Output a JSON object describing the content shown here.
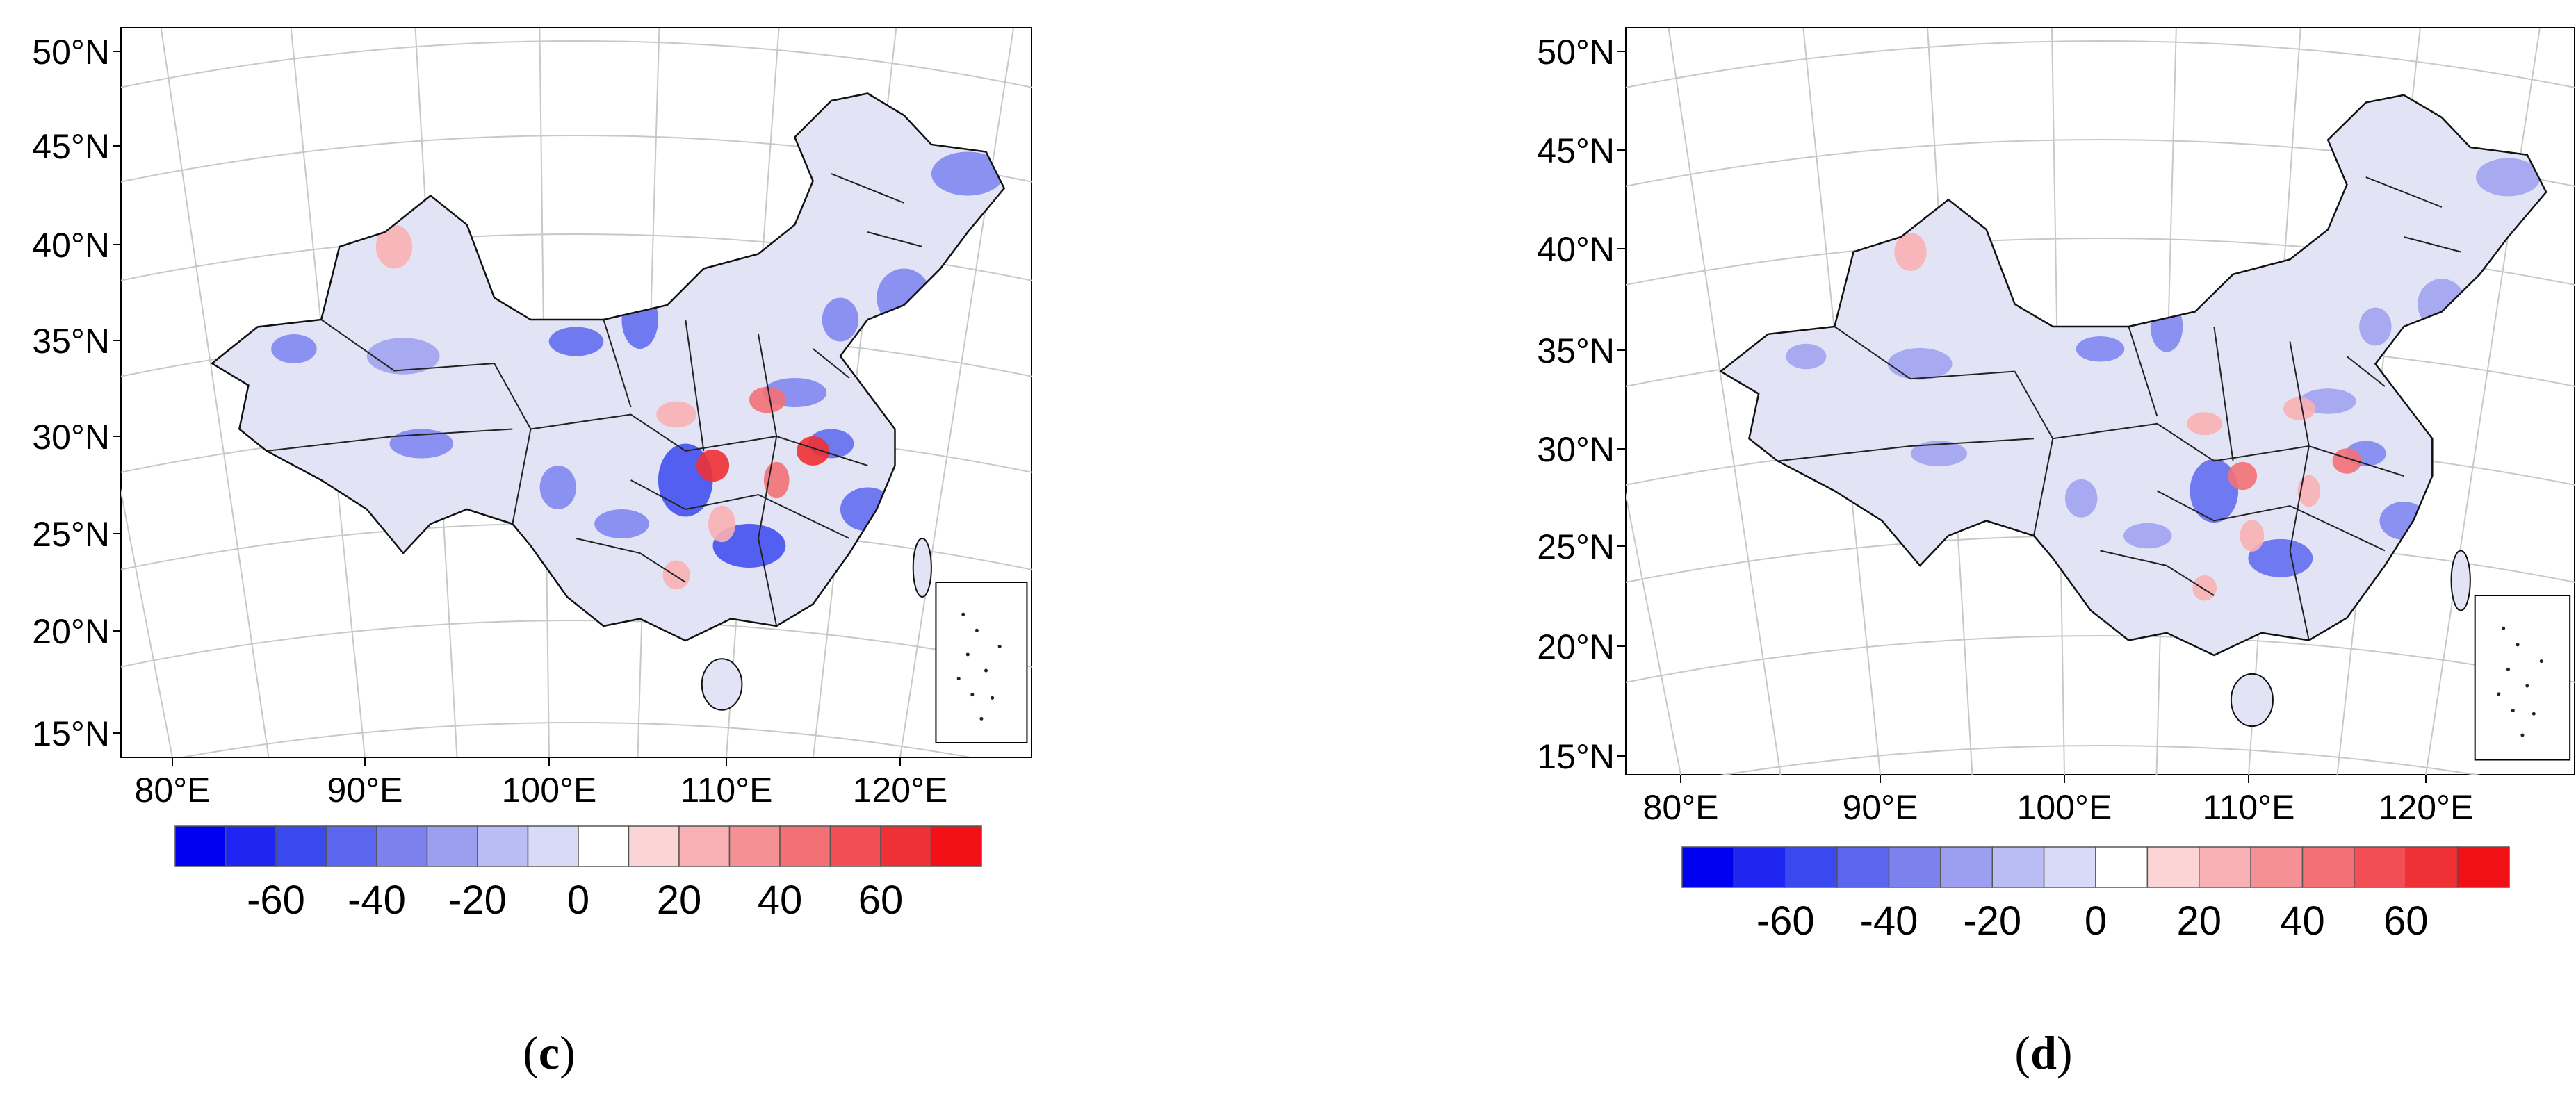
{
  "figure": {
    "panels": [
      {
        "id": "c",
        "caption_open": "(",
        "caption_letter": "c",
        "caption_close": ")",
        "lat_labels": [
          "50°N",
          "45°N",
          "40°N",
          "35°N",
          "30°N",
          "25°N",
          "20°N",
          "15°N"
        ],
        "lon_labels": [
          "80°E",
          "90°E",
          "100°E",
          "110°E",
          "120°E"
        ],
        "colorbar_ticks": [
          "-60",
          "-40",
          "-20",
          "0",
          "20",
          "40",
          "60"
        ]
      },
      {
        "id": "d",
        "caption_open": "(",
        "caption_letter": "d",
        "caption_close": ")",
        "lat_labels": [
          "50°N",
          "45°N",
          "40°N",
          "35°N",
          "30°N",
          "25°N",
          "20°N",
          "15°N"
        ],
        "lon_labels": [
          "80°E",
          "90°E",
          "100°E",
          "110°E",
          "120°E"
        ],
        "colorbar_ticks": [
          "-60",
          "-40",
          "-20",
          "0",
          "20",
          "40",
          "60"
        ]
      }
    ],
    "colorbar_colors": [
      "#0000f0",
      "#1f26f2",
      "#3a48f0",
      "#5a66ee",
      "#7b82ee",
      "#9c9ff0",
      "#babdf3",
      "#d9daf8",
      "#ffffff",
      "#fbd4d6",
      "#f8b0b4",
      "#f59095",
      "#f37075",
      "#f14f55",
      "#ef3035",
      "#f01015"
    ],
    "map_base_color": "#e2e4f6"
  }
}
